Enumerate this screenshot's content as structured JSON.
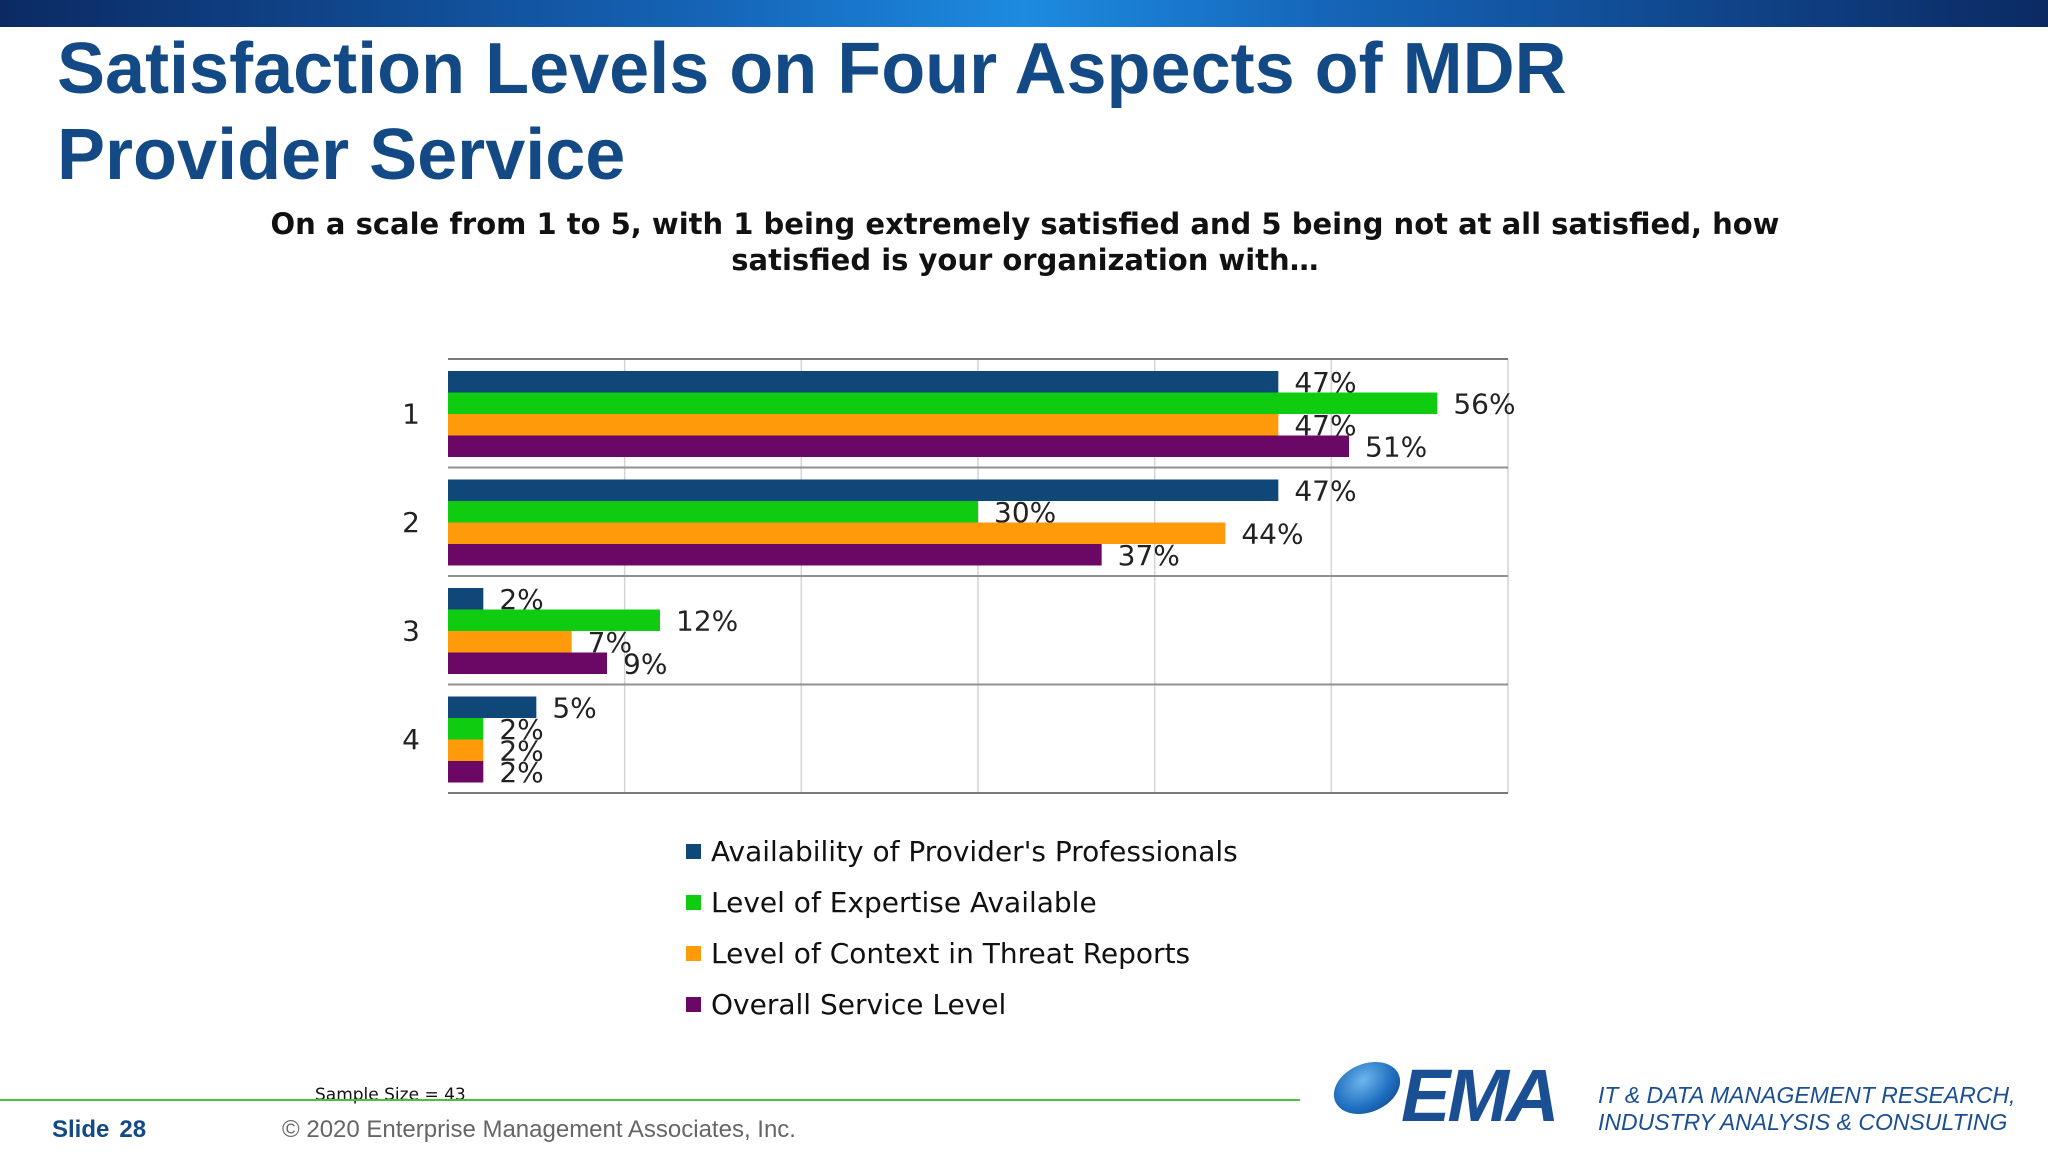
{
  "slide": {
    "title": "Satisfaction Levels on Four Aspects of MDR Provider Service",
    "question": "On a scale from 1 to 5, with 1 being extremely satisfied and 5 being not at all satisfied, how satisfied is your organization with…",
    "sample_size": "Sample Size = 43",
    "slide_label": "Slide",
    "slide_number": "28",
    "copyright": "© 2020  Enterprise Management Associates, Inc.",
    "logo_text": "EMA",
    "tagline_line1": "IT & DATA MANAGEMENT RESEARCH,",
    "tagline_line2": "INDUSTRY ANALYSIS & CONSULTING"
  },
  "colors": {
    "title": "#134a85",
    "accent_line": "#4cbf3f"
  },
  "chart_data": {
    "type": "bar",
    "orientation": "horizontal",
    "categories": [
      "1",
      "2",
      "3",
      "4"
    ],
    "xlim": [
      0,
      60
    ],
    "grid": true,
    "legend_position": "bottom",
    "value_suffix": "%",
    "series": [
      {
        "name": "Availability of Provider's Professionals",
        "color": "#0e4778",
        "values": [
          47,
          47,
          2,
          5
        ]
      },
      {
        "name": "Level of Expertise Available",
        "color": "#10cc10",
        "values": [
          56,
          30,
          12,
          2
        ]
      },
      {
        "name": "Level of Context in Threat Reports",
        "color": "#ff9a0a",
        "values": [
          47,
          44,
          7,
          2
        ]
      },
      {
        "name": "Overall Service Level",
        "color": "#6b0866",
        "values": [
          51,
          37,
          9,
          2
        ]
      }
    ]
  }
}
